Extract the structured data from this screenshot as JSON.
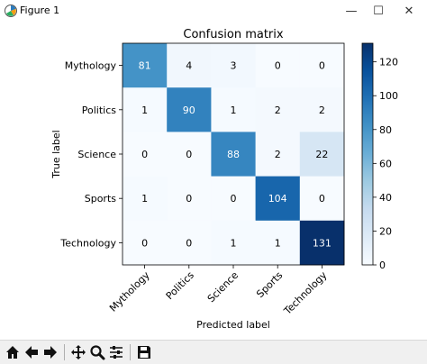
{
  "window": {
    "title": "Figure 1",
    "minimize_label": "—",
    "maximize_label": "☐",
    "close_label": "✕"
  },
  "toolbar": {
    "buttons": [
      {
        "name": "home-icon"
      },
      {
        "name": "back-arrow-icon"
      },
      {
        "name": "forward-arrow-icon"
      },
      {
        "name": "pan-icon"
      },
      {
        "name": "zoom-icon"
      },
      {
        "name": "subplots-config-icon"
      },
      {
        "name": "save-icon"
      }
    ]
  },
  "chart_data": {
    "type": "heatmap",
    "title": "Confusion matrix",
    "xlabel": "Predicted label",
    "ylabel": "True label",
    "x_categories": [
      "Mythology",
      "Politics",
      "Science",
      "Sports",
      "Technology"
    ],
    "y_categories": [
      "Mythology",
      "Politics",
      "Science",
      "Sports",
      "Technology"
    ],
    "values": [
      [
        81,
        4,
        3,
        0,
        0
      ],
      [
        1,
        90,
        1,
        2,
        2
      ],
      [
        0,
        0,
        88,
        2,
        22
      ],
      [
        1,
        0,
        0,
        104,
        0
      ],
      [
        0,
        0,
        1,
        1,
        131
      ]
    ],
    "colormap": "Blues",
    "colorbar": {
      "range": [
        0,
        131
      ],
      "ticks": [
        0,
        20,
        40,
        60,
        80,
        100,
        120
      ]
    },
    "grid": false
  }
}
